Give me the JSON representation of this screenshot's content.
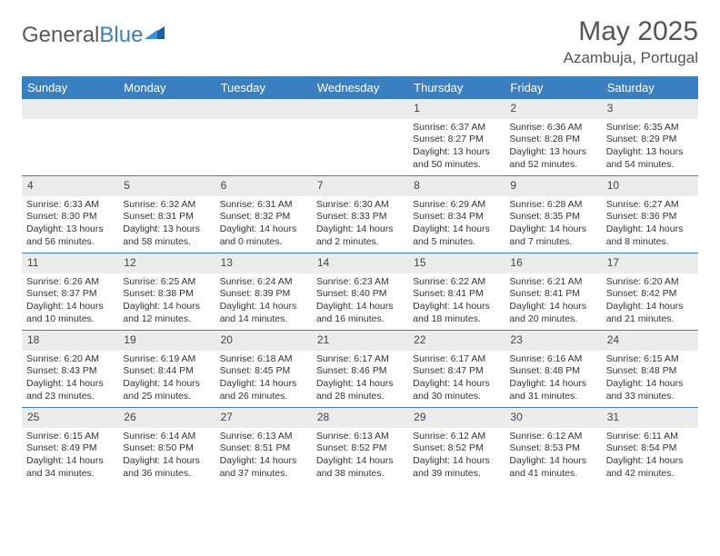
{
  "logo": {
    "text1": "General",
    "text2": "Blue"
  },
  "title": "May 2025",
  "location": "Azambuja, Portugal",
  "colors": {
    "header_bg": "#3a7fbf",
    "header_fg": "#ffffff",
    "daynum_bg": "#ececec",
    "border": "#3a7fbf",
    "text": "#333333",
    "title": "#555555"
  },
  "day_names": [
    "Sunday",
    "Monday",
    "Tuesday",
    "Wednesday",
    "Thursday",
    "Friday",
    "Saturday"
  ],
  "weeks": [
    [
      {
        "n": "",
        "sr": "",
        "ss": "",
        "dl": ""
      },
      {
        "n": "",
        "sr": "",
        "ss": "",
        "dl": ""
      },
      {
        "n": "",
        "sr": "",
        "ss": "",
        "dl": ""
      },
      {
        "n": "",
        "sr": "",
        "ss": "",
        "dl": ""
      },
      {
        "n": "1",
        "sr": "Sunrise: 6:37 AM",
        "ss": "Sunset: 8:27 PM",
        "dl": "Daylight: 13 hours and 50 minutes."
      },
      {
        "n": "2",
        "sr": "Sunrise: 6:36 AM",
        "ss": "Sunset: 8:28 PM",
        "dl": "Daylight: 13 hours and 52 minutes."
      },
      {
        "n": "3",
        "sr": "Sunrise: 6:35 AM",
        "ss": "Sunset: 8:29 PM",
        "dl": "Daylight: 13 hours and 54 minutes."
      }
    ],
    [
      {
        "n": "4",
        "sr": "Sunrise: 6:33 AM",
        "ss": "Sunset: 8:30 PM",
        "dl": "Daylight: 13 hours and 56 minutes."
      },
      {
        "n": "5",
        "sr": "Sunrise: 6:32 AM",
        "ss": "Sunset: 8:31 PM",
        "dl": "Daylight: 13 hours and 58 minutes."
      },
      {
        "n": "6",
        "sr": "Sunrise: 6:31 AM",
        "ss": "Sunset: 8:32 PM",
        "dl": "Daylight: 14 hours and 0 minutes."
      },
      {
        "n": "7",
        "sr": "Sunrise: 6:30 AM",
        "ss": "Sunset: 8:33 PM",
        "dl": "Daylight: 14 hours and 2 minutes."
      },
      {
        "n": "8",
        "sr": "Sunrise: 6:29 AM",
        "ss": "Sunset: 8:34 PM",
        "dl": "Daylight: 14 hours and 5 minutes."
      },
      {
        "n": "9",
        "sr": "Sunrise: 6:28 AM",
        "ss": "Sunset: 8:35 PM",
        "dl": "Daylight: 14 hours and 7 minutes."
      },
      {
        "n": "10",
        "sr": "Sunrise: 6:27 AM",
        "ss": "Sunset: 8:36 PM",
        "dl": "Daylight: 14 hours and 8 minutes."
      }
    ],
    [
      {
        "n": "11",
        "sr": "Sunrise: 6:26 AM",
        "ss": "Sunset: 8:37 PM",
        "dl": "Daylight: 14 hours and 10 minutes."
      },
      {
        "n": "12",
        "sr": "Sunrise: 6:25 AM",
        "ss": "Sunset: 8:38 PM",
        "dl": "Daylight: 14 hours and 12 minutes."
      },
      {
        "n": "13",
        "sr": "Sunrise: 6:24 AM",
        "ss": "Sunset: 8:39 PM",
        "dl": "Daylight: 14 hours and 14 minutes."
      },
      {
        "n": "14",
        "sr": "Sunrise: 6:23 AM",
        "ss": "Sunset: 8:40 PM",
        "dl": "Daylight: 14 hours and 16 minutes."
      },
      {
        "n": "15",
        "sr": "Sunrise: 6:22 AM",
        "ss": "Sunset: 8:41 PM",
        "dl": "Daylight: 14 hours and 18 minutes."
      },
      {
        "n": "16",
        "sr": "Sunrise: 6:21 AM",
        "ss": "Sunset: 8:41 PM",
        "dl": "Daylight: 14 hours and 20 minutes."
      },
      {
        "n": "17",
        "sr": "Sunrise: 6:20 AM",
        "ss": "Sunset: 8:42 PM",
        "dl": "Daylight: 14 hours and 21 minutes."
      }
    ],
    [
      {
        "n": "18",
        "sr": "Sunrise: 6:20 AM",
        "ss": "Sunset: 8:43 PM",
        "dl": "Daylight: 14 hours and 23 minutes."
      },
      {
        "n": "19",
        "sr": "Sunrise: 6:19 AM",
        "ss": "Sunset: 8:44 PM",
        "dl": "Daylight: 14 hours and 25 minutes."
      },
      {
        "n": "20",
        "sr": "Sunrise: 6:18 AM",
        "ss": "Sunset: 8:45 PM",
        "dl": "Daylight: 14 hours and 26 minutes."
      },
      {
        "n": "21",
        "sr": "Sunrise: 6:17 AM",
        "ss": "Sunset: 8:46 PM",
        "dl": "Daylight: 14 hours and 28 minutes."
      },
      {
        "n": "22",
        "sr": "Sunrise: 6:17 AM",
        "ss": "Sunset: 8:47 PM",
        "dl": "Daylight: 14 hours and 30 minutes."
      },
      {
        "n": "23",
        "sr": "Sunrise: 6:16 AM",
        "ss": "Sunset: 8:48 PM",
        "dl": "Daylight: 14 hours and 31 minutes."
      },
      {
        "n": "24",
        "sr": "Sunrise: 6:15 AM",
        "ss": "Sunset: 8:48 PM",
        "dl": "Daylight: 14 hours and 33 minutes."
      }
    ],
    [
      {
        "n": "25",
        "sr": "Sunrise: 6:15 AM",
        "ss": "Sunset: 8:49 PM",
        "dl": "Daylight: 14 hours and 34 minutes."
      },
      {
        "n": "26",
        "sr": "Sunrise: 6:14 AM",
        "ss": "Sunset: 8:50 PM",
        "dl": "Daylight: 14 hours and 36 minutes."
      },
      {
        "n": "27",
        "sr": "Sunrise: 6:13 AM",
        "ss": "Sunset: 8:51 PM",
        "dl": "Daylight: 14 hours and 37 minutes."
      },
      {
        "n": "28",
        "sr": "Sunrise: 6:13 AM",
        "ss": "Sunset: 8:52 PM",
        "dl": "Daylight: 14 hours and 38 minutes."
      },
      {
        "n": "29",
        "sr": "Sunrise: 6:12 AM",
        "ss": "Sunset: 8:52 PM",
        "dl": "Daylight: 14 hours and 39 minutes."
      },
      {
        "n": "30",
        "sr": "Sunrise: 6:12 AM",
        "ss": "Sunset: 8:53 PM",
        "dl": "Daylight: 14 hours and 41 minutes."
      },
      {
        "n": "31",
        "sr": "Sunrise: 6:11 AM",
        "ss": "Sunset: 8:54 PM",
        "dl": "Daylight: 14 hours and 42 minutes."
      }
    ]
  ]
}
